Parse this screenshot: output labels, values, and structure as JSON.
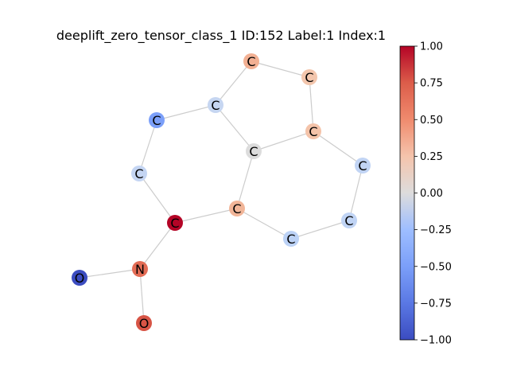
{
  "title": "deeplift_zero_tensor_class_1 ID:152 Label:1 Index:1",
  "nodes": [
    {
      "id": "n0",
      "label": "C",
      "color": "#f2b093"
    },
    {
      "id": "n1",
      "label": "C",
      "color": "#f3c6ad"
    },
    {
      "id": "n2",
      "label": "C",
      "color": "#c6d6f1"
    },
    {
      "id": "n3",
      "label": "C",
      "color": "#7b9ff9"
    },
    {
      "id": "n4",
      "label": "C",
      "color": "#f4c3a9"
    },
    {
      "id": "n5",
      "label": "C",
      "color": "#dcdcdc"
    },
    {
      "id": "n6",
      "label": "C",
      "color": "#c1d4f4"
    },
    {
      "id": "n7",
      "label": "C",
      "color": "#c4d5f3"
    },
    {
      "id": "n8",
      "label": "C",
      "color": "#f1b598"
    },
    {
      "id": "n9",
      "label": "C",
      "color": "#b40426"
    },
    {
      "id": "n10",
      "label": "C",
      "color": "#c0d4f5"
    },
    {
      "id": "n11",
      "label": "C",
      "color": "#bcd2f6"
    },
    {
      "id": "n12",
      "label": "N",
      "color": "#e36c55"
    },
    {
      "id": "n13",
      "label": "O",
      "color": "#3b4cc0"
    },
    {
      "id": "n14",
      "label": "O",
      "color": "#d75445"
    }
  ],
  "edges": [
    [
      "n0",
      "n1"
    ],
    [
      "n0",
      "n2"
    ],
    [
      "n1",
      "n4"
    ],
    [
      "n2",
      "n3"
    ],
    [
      "n2",
      "n5"
    ],
    [
      "n3",
      "n7"
    ],
    [
      "n4",
      "n5"
    ],
    [
      "n4",
      "n6"
    ],
    [
      "n5",
      "n8"
    ],
    [
      "n6",
      "n10"
    ],
    [
      "n7",
      "n9"
    ],
    [
      "n8",
      "n9"
    ],
    [
      "n8",
      "n11"
    ],
    [
      "n10",
      "n11"
    ],
    [
      "n9",
      "n12"
    ],
    [
      "n12",
      "n13"
    ],
    [
      "n12",
      "n14"
    ]
  ],
  "colorbar": {
    "min": -1.0,
    "max": 1.0,
    "colormap": "coolwarm",
    "ticks": [
      "1.00",
      "0.75",
      "0.50",
      "0.25",
      "0.00",
      "−0.25",
      "−0.50",
      "−0.75",
      "−1.00"
    ]
  }
}
